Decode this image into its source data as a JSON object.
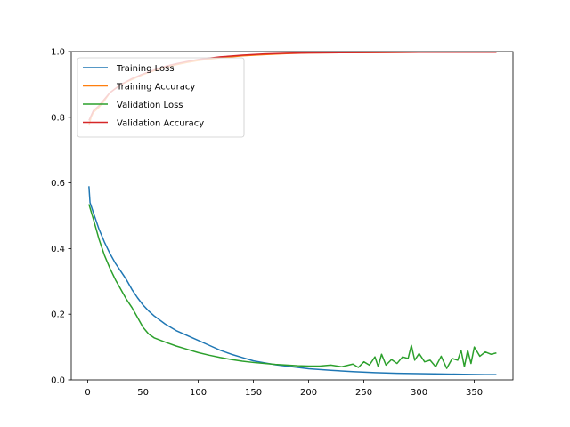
{
  "chart_data": {
    "type": "line",
    "title": "",
    "xlabel": "",
    "ylabel": "",
    "xlim": [
      -15,
      385
    ],
    "ylim": [
      0,
      1.0
    ],
    "xticks": [
      0,
      50,
      100,
      150,
      200,
      250,
      300,
      350
    ],
    "yticks": [
      0.0,
      0.2,
      0.4,
      0.6,
      0.8,
      1.0
    ],
    "xtick_labels": [
      "0",
      "50",
      "100",
      "150",
      "200",
      "250",
      "300",
      "350"
    ],
    "ytick_labels": [
      "0.0",
      "0.2",
      "0.4",
      "0.6",
      "0.8",
      "1.0"
    ],
    "grid": false,
    "legend_position": "upper-left",
    "series": [
      {
        "name": "Training Loss",
        "color": "#1f77b4",
        "x": [
          1,
          2,
          5,
          10,
          15,
          20,
          25,
          30,
          35,
          40,
          45,
          50,
          55,
          60,
          70,
          80,
          90,
          100,
          110,
          120,
          130,
          140,
          150,
          160,
          170,
          180,
          190,
          200,
          220,
          240,
          260,
          280,
          300,
          320,
          340,
          360,
          370
        ],
        "values": [
          0.59,
          0.54,
          0.51,
          0.46,
          0.42,
          0.385,
          0.355,
          0.33,
          0.305,
          0.275,
          0.25,
          0.228,
          0.21,
          0.195,
          0.17,
          0.15,
          0.135,
          0.12,
          0.105,
          0.09,
          0.078,
          0.068,
          0.058,
          0.052,
          0.046,
          0.042,
          0.038,
          0.034,
          0.029,
          0.025,
          0.022,
          0.02,
          0.019,
          0.018,
          0.017,
          0.016,
          0.016
        ]
      },
      {
        "name": "Training Accuracy",
        "color": "#ff7f0e",
        "x": [
          1,
          3,
          5,
          10,
          15,
          20,
          30,
          40,
          50,
          60,
          70,
          80,
          90,
          100,
          120,
          140,
          160,
          180,
          200,
          250,
          300,
          350,
          370
        ],
        "values": [
          0.775,
          0.8,
          0.815,
          0.83,
          0.85,
          0.875,
          0.9,
          0.915,
          0.93,
          0.942,
          0.952,
          0.96,
          0.967,
          0.973,
          0.981,
          0.987,
          0.991,
          0.994,
          0.996,
          0.997,
          0.998,
          0.998,
          0.998
        ]
      },
      {
        "name": "Validation Loss",
        "color": "#2ca02c",
        "x": [
          1,
          5,
          10,
          15,
          20,
          25,
          30,
          35,
          40,
          45,
          50,
          55,
          60,
          70,
          80,
          90,
          100,
          110,
          120,
          130,
          140,
          150,
          160,
          170,
          180,
          190,
          200,
          210,
          220,
          230,
          240,
          245,
          250,
          255,
          260,
          263,
          266,
          270,
          275,
          280,
          285,
          290,
          293,
          296,
          300,
          305,
          310,
          315,
          320,
          325,
          330,
          335,
          338,
          341,
          344,
          347,
          350,
          355,
          360,
          365,
          370
        ],
        "values": [
          0.535,
          0.49,
          0.43,
          0.38,
          0.34,
          0.305,
          0.275,
          0.245,
          0.22,
          0.19,
          0.16,
          0.14,
          0.128,
          0.115,
          0.103,
          0.093,
          0.083,
          0.075,
          0.068,
          0.062,
          0.057,
          0.053,
          0.05,
          0.047,
          0.045,
          0.043,
          0.042,
          0.042,
          0.045,
          0.04,
          0.048,
          0.038,
          0.055,
          0.045,
          0.07,
          0.04,
          0.078,
          0.045,
          0.062,
          0.05,
          0.07,
          0.065,
          0.105,
          0.06,
          0.08,
          0.055,
          0.06,
          0.04,
          0.072,
          0.035,
          0.065,
          0.06,
          0.09,
          0.04,
          0.09,
          0.05,
          0.1,
          0.072,
          0.085,
          0.078,
          0.082
        ]
      },
      {
        "name": "Validation Accuracy",
        "color": "#d62728",
        "x": [
          1,
          3,
          5,
          10,
          15,
          20,
          30,
          40,
          50,
          60,
          70,
          80,
          90,
          100,
          120,
          140,
          160,
          180,
          200,
          250,
          300,
          350,
          370
        ],
        "values": [
          0.79,
          0.805,
          0.82,
          0.835,
          0.855,
          0.875,
          0.9,
          0.918,
          0.932,
          0.944,
          0.955,
          0.963,
          0.97,
          0.976,
          0.984,
          0.989,
          0.993,
          0.995,
          0.996,
          0.997,
          0.998,
          0.998,
          0.998
        ]
      }
    ]
  }
}
